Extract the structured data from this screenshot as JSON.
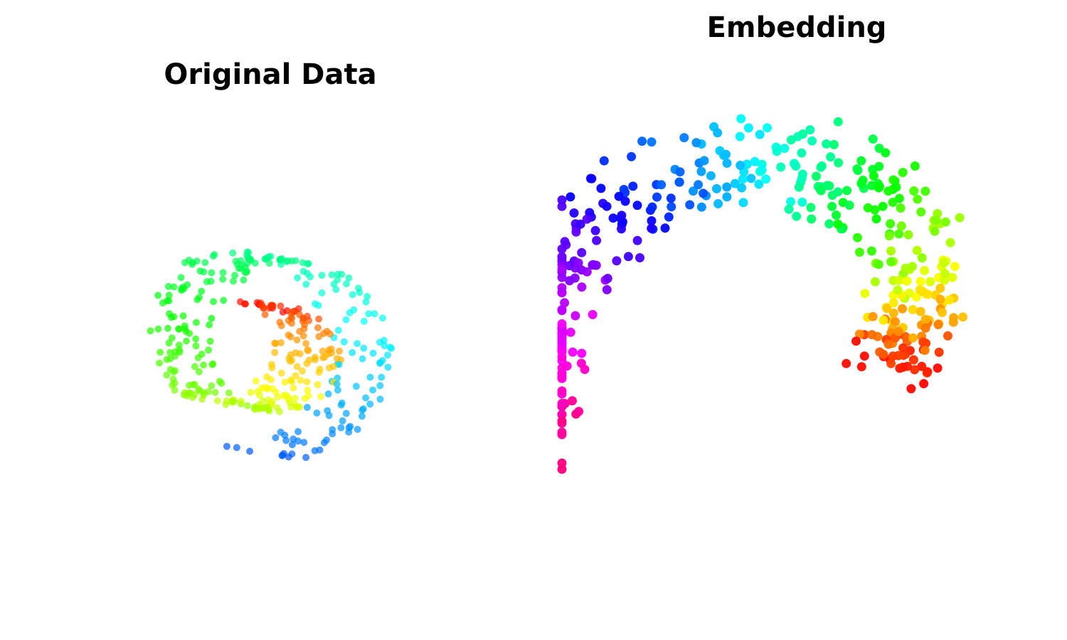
{
  "chart_data": [
    {
      "type": "scatter",
      "title": "Original Data",
      "projection": "3d",
      "grid": false,
      "axes_visible": false,
      "colormap": "hsv",
      "point_count": 400,
      "shape": "swiss roll (3D spiral sheet), viewed at an angle"
    },
    {
      "type": "scatter",
      "title": "Embedding",
      "projection": "2d",
      "grid": false,
      "axes_visible": false,
      "colormap": "hsv",
      "point_count": 400,
      "shape": "2D embedding of the swiss roll"
    }
  ]
}
